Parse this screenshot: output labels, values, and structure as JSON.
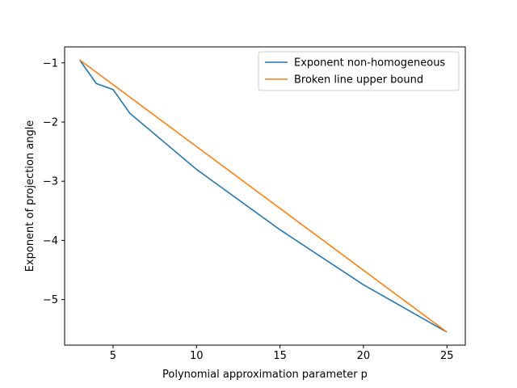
{
  "chart_data": {
    "type": "line",
    "title": "",
    "xlabel": "Polynomial approximation parameter p",
    "ylabel": "Exponent of projection angle",
    "xlim": [
      2.1,
      26.1
    ],
    "ylim": [
      -5.77,
      -0.73
    ],
    "xticks": [
      5,
      10,
      15,
      20,
      25
    ],
    "yticks": [
      -5,
      -4,
      -3,
      -2,
      -1
    ],
    "xtick_labels": [
      "5",
      "10",
      "15",
      "20",
      "25"
    ],
    "ytick_labels": [
      "−5",
      "−4",
      "−3",
      "−2",
      "−1"
    ],
    "grid": false,
    "legend_position": "top-right",
    "series": [
      {
        "name": "Exponent non-homogeneous",
        "color": "#1f77b4",
        "x": [
          3,
          4,
          5,
          6,
          10,
          15,
          20,
          25
        ],
        "y": [
          -0.95,
          -1.35,
          -1.45,
          -1.85,
          -2.8,
          -3.82,
          -4.75,
          -5.55
        ]
      },
      {
        "name": "Broken line upper bound",
        "color": "#ff7f0e",
        "x": [
          3,
          25
        ],
        "y": [
          -0.95,
          -5.55
        ]
      }
    ]
  }
}
